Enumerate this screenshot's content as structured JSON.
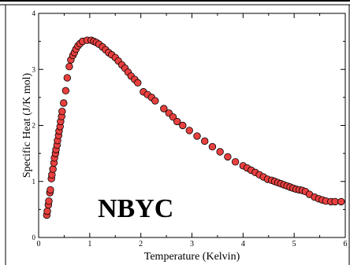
{
  "chart_data": {
    "type": "scatter",
    "title": "",
    "xlabel": "Temperature (Kelvin)",
    "ylabel": "Specific Heat (J/K mol)",
    "xlim": [
      0,
      6
    ],
    "ylim": [
      0,
      4
    ],
    "xticks": [
      "0",
      "1",
      "2",
      "3",
      "4",
      "5",
      "6"
    ],
    "yticks": [
      "0",
      "1",
      "2",
      "3",
      "4"
    ],
    "annotation": "NBYC",
    "marker_color": "#e8403f",
    "marker_edge": "#000000",
    "series": [
      {
        "points": [
          [
            0.16,
            0.4
          ],
          [
            0.17,
            0.47
          ],
          [
            0.19,
            0.58
          ],
          [
            0.2,
            0.65
          ],
          [
            0.22,
            0.8
          ],
          [
            0.23,
            0.85
          ],
          [
            0.25,
            1.05
          ],
          [
            0.26,
            1.12
          ],
          [
            0.28,
            1.22
          ],
          [
            0.3,
            1.33
          ],
          [
            0.31,
            1.42
          ],
          [
            0.33,
            1.5
          ],
          [
            0.34,
            1.57
          ],
          [
            0.36,
            1.65
          ],
          [
            0.37,
            1.73
          ],
          [
            0.39,
            1.82
          ],
          [
            0.4,
            1.9
          ],
          [
            0.42,
            1.98
          ],
          [
            0.43,
            2.07
          ],
          [
            0.45,
            2.16
          ],
          [
            0.46,
            2.25
          ],
          [
            0.49,
            2.4
          ],
          [
            0.53,
            2.62
          ],
          [
            0.56,
            2.85
          ],
          [
            0.6,
            3.05
          ],
          [
            0.63,
            3.17
          ],
          [
            0.67,
            3.25
          ],
          [
            0.7,
            3.3
          ],
          [
            0.73,
            3.36
          ],
          [
            0.77,
            3.42
          ],
          [
            0.81,
            3.46
          ],
          [
            0.86,
            3.5
          ],
          [
            0.95,
            3.52
          ],
          [
            1.03,
            3.52
          ],
          [
            1.08,
            3.5
          ],
          [
            1.13,
            3.48
          ],
          [
            1.18,
            3.45
          ],
          [
            1.25,
            3.4
          ],
          [
            1.31,
            3.35
          ],
          [
            1.37,
            3.3
          ],
          [
            1.43,
            3.26
          ],
          [
            1.5,
            3.21
          ],
          [
            1.56,
            3.15
          ],
          [
            1.63,
            3.08
          ],
          [
            1.69,
            3.02
          ],
          [
            1.75,
            2.95
          ],
          [
            1.81,
            2.88
          ],
          [
            1.88,
            2.82
          ],
          [
            1.94,
            2.76
          ],
          [
            2.05,
            2.6
          ],
          [
            2.13,
            2.55
          ],
          [
            2.21,
            2.5
          ],
          [
            2.28,
            2.44
          ],
          [
            2.45,
            2.3
          ],
          [
            2.55,
            2.22
          ],
          [
            2.63,
            2.15
          ],
          [
            2.71,
            2.07
          ],
          [
            2.82,
            2.0
          ],
          [
            2.95,
            1.91
          ],
          [
            3.1,
            1.81
          ],
          [
            3.25,
            1.72
          ],
          [
            3.4,
            1.62
          ],
          [
            3.55,
            1.53
          ],
          [
            3.7,
            1.44
          ],
          [
            3.85,
            1.35
          ],
          [
            4.0,
            1.28
          ],
          [
            4.08,
            1.24
          ],
          [
            4.16,
            1.2
          ],
          [
            4.24,
            1.16
          ],
          [
            4.32,
            1.12
          ],
          [
            4.4,
            1.08
          ],
          [
            4.48,
            1.04
          ],
          [
            4.56,
            1.02
          ],
          [
            4.62,
            1.0
          ],
          [
            4.68,
            0.98
          ],
          [
            4.74,
            0.96
          ],
          [
            4.8,
            0.94
          ],
          [
            4.86,
            0.92
          ],
          [
            4.92,
            0.9
          ],
          [
            4.98,
            0.88
          ],
          [
            5.04,
            0.86
          ],
          [
            5.1,
            0.85
          ],
          [
            5.16,
            0.84
          ],
          [
            5.22,
            0.82
          ],
          [
            5.3,
            0.77
          ],
          [
            5.4,
            0.72
          ],
          [
            5.48,
            0.69
          ],
          [
            5.55,
            0.67
          ],
          [
            5.62,
            0.65
          ],
          [
            5.72,
            0.64
          ],
          [
            5.8,
            0.64
          ],
          [
            5.92,
            0.64
          ]
        ]
      }
    ]
  }
}
